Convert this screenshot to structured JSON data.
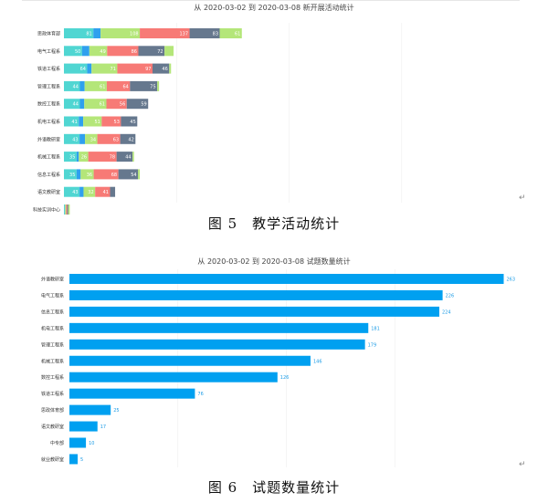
{
  "figure1": {
    "title": "从 2020-03-02 到 2020-03-08 新开展活动统计",
    "caption": "图 5　教学活动统计",
    "colors": [
      "#50d6d2",
      "#2fa0ee",
      "#b4e679",
      "#f77a76",
      "#66788e",
      "#b4e679"
    ],
    "chart_data": {
      "type": "bar",
      "orientation": "horizontal",
      "stacked": true,
      "categories": [
        "思政体育部",
        "电气工程系",
        "铁道工程系",
        "管理工程系",
        "数控工程系",
        "机电工程系",
        "外语教研室",
        "机械工程系",
        "信息工程系",
        "语文教研室",
        "科技实训中心"
      ],
      "series": [
        {
          "values": [
            81,
            50,
            64,
            44,
            44,
            41,
            43,
            35,
            35,
            43,
            2
          ]
        },
        {
          "values": [
            20,
            20,
            12,
            13,
            12,
            12,
            15,
            6,
            11,
            11,
            1
          ]
        },
        {
          "values": [
            108,
            49,
            71,
            61,
            61,
            51,
            34,
            26,
            36,
            32,
            3
          ]
        },
        {
          "values": [
            137,
            86,
            97,
            64,
            56,
            53,
            63,
            78,
            68,
            41,
            3
          ]
        },
        {
          "values": [
            83,
            72,
            46,
            75,
            59,
            45,
            42,
            44,
            54,
            14,
            3
          ]
        },
        {
          "values": [
            61,
            25,
            5,
            5,
            0,
            0,
            0,
            4,
            5,
            0,
            4
          ]
        }
      ]
    }
  },
  "figure2": {
    "title": "从 2020-03-02 到 2020-03-08 试题数量统计",
    "caption": "图 6　试题数量统计",
    "color": "#00a0f0",
    "chart_data": {
      "type": "bar",
      "orientation": "horizontal",
      "categories": [
        "外语教研室",
        "电气工程系",
        "信息工程系",
        "机电工程系",
        "管理工程系",
        "机械工程系",
        "数控工程系",
        "铁道工程系",
        "思政体育部",
        "语文教研室",
        "中专部",
        "就业教研室"
      ],
      "values": [
        263,
        226,
        224,
        181,
        179,
        146,
        126,
        76,
        25,
        17,
        10,
        5
      ]
    }
  },
  "marks": {
    "return": "↵"
  }
}
